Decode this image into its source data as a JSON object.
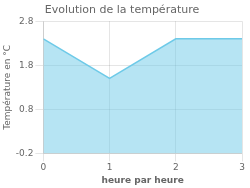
{
  "chart_data": {
    "type": "area",
    "title": "Evolution de la température",
    "xlabel": "heure par heure",
    "ylabel": "Température en °C",
    "x": [
      0,
      1,
      2,
      3
    ],
    "values": [
      2.4,
      1.5,
      2.4,
      2.4
    ],
    "color": "#6ecae8",
    "xlim": [
      0,
      3
    ],
    "ylim": [
      -0.2,
      2.8
    ],
    "xticks": [
      0,
      1,
      2,
      3
    ],
    "yticks": [
      -0.2,
      0.8,
      1.8,
      2.8
    ],
    "grid": true
  }
}
